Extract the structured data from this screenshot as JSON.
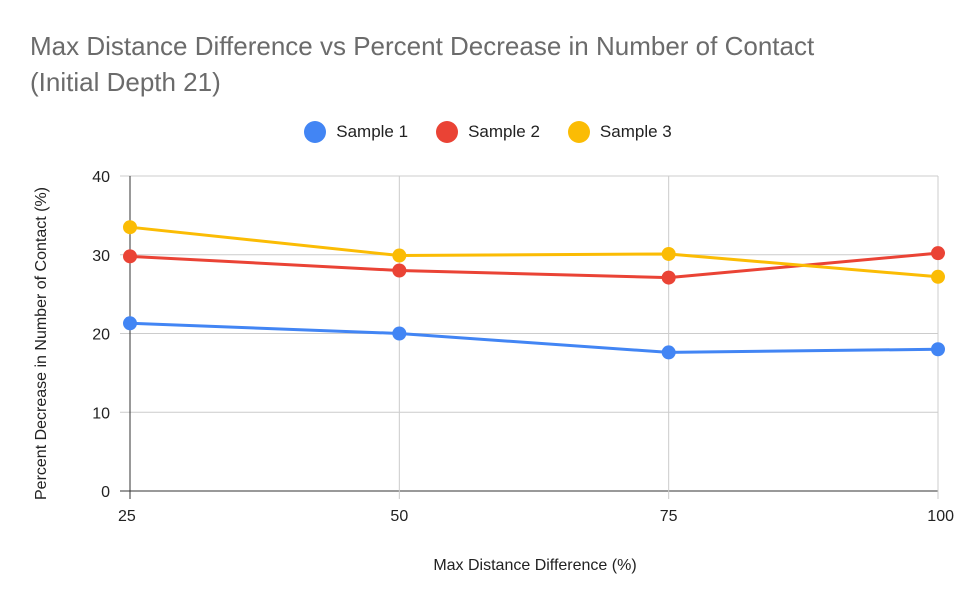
{
  "chart_data": {
    "type": "line",
    "title_line1": "Max Distance Difference vs Percent Decrease in Number of Contact",
    "title_line2": "(Initial Depth 21)",
    "xlabel": "Max Distance Difference (%)",
    "ylabel": "Percent Decrease in Number of Contact (%)",
    "x": [
      25,
      50,
      75,
      100
    ],
    "x_tick_labels": [
      "25",
      "50",
      "75",
      "100"
    ],
    "ylim": [
      0,
      40
    ],
    "y_ticks": [
      0,
      10,
      20,
      30,
      40
    ],
    "y_tick_labels": [
      "0",
      "10",
      "20",
      "30",
      "40"
    ],
    "grid": true,
    "legend_position": "top",
    "series": [
      {
        "name": "Sample 1",
        "color": "#4285f4",
        "values": [
          21.3,
          20.0,
          17.6,
          18.0
        ]
      },
      {
        "name": "Sample 2",
        "color": "#ea4335",
        "values": [
          29.8,
          28.0,
          27.1,
          30.2
        ]
      },
      {
        "name": "Sample 3",
        "color": "#fbbc04",
        "values": [
          33.5,
          29.9,
          30.1,
          27.2
        ]
      }
    ]
  }
}
